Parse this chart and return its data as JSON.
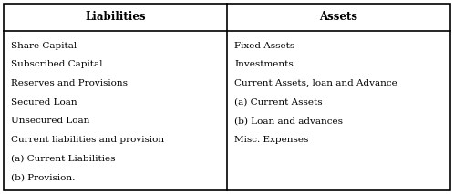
{
  "liabilities_header": "Liabilities",
  "assets_header": "Assets",
  "liabilities_items": [
    "Share Capital",
    "Subscribed Capital",
    "Reserves and Provisions",
    "Secured Loan",
    "Unsecured Loan",
    "Current liabilities and provision",
    "(a) Current Liabilities",
    "(b) Provision."
  ],
  "assets_items": [
    "Fixed Assets",
    "Investments",
    "Current Assets, loan and Advance",
    "(a) Current Assets",
    "(b) Loan and advances",
    "Misc. Expenses"
  ],
  "bg_color": "#ffffff",
  "border_color": "#000000",
  "text_color": "#000000",
  "header_fontsize": 8.5,
  "body_fontsize": 7.5,
  "fig_width": 4.98,
  "fig_height": 2.13
}
